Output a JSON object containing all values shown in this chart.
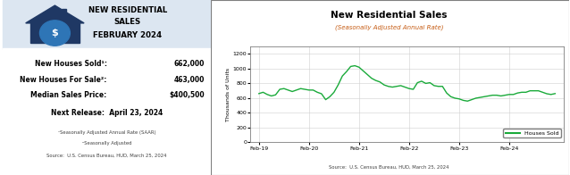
{
  "left_panel_bg": "#dce6f1",
  "right_panel_bg": "#ffffff",
  "title_line1": "NEW RESIDENTIAL",
  "title_line2": "SALES",
  "title_line3": "FEBRUARY 2024",
  "stats": [
    {
      "label": "New Houses Sold¹:",
      "value": "662,000"
    },
    {
      "label": "New Houses For Sale²:",
      "value": "463,000"
    },
    {
      "label": "Median Sales Price:",
      "value": "$400,500"
    }
  ],
  "next_release": "Next Release:  April 23, 2024",
  "footnote1": "¹Seasonally Adjusted Annual Rate (SAAR)",
  "footnote2": "²Seasonally Adjusted",
  "source_left": "Source:  U.S. Census Bureau, HUD, March 25, 2024",
  "chart_title": "New Residential Sales",
  "chart_subtitle": "(Seasonally Adjusted Annual Rate)",
  "chart_ylabel": "Thousands of Units",
  "chart_source": "Source:  U.S. Census Bureau, HUD, March 25, 2024",
  "chart_legend": "Houses Sold",
  "line_color": "#1aaa3a",
  "ylim": [
    0,
    1300
  ],
  "yticks": [
    0,
    200,
    400,
    600,
    800,
    1000,
    1200
  ],
  "xtick_labels": [
    "Feb-19",
    "Feb-20",
    "Feb-21",
    "Feb-22",
    "Feb-23",
    "Feb-24"
  ],
  "houses_sold": [
    662,
    680,
    650,
    630,
    645,
    720,
    730,
    710,
    690,
    710,
    730,
    720,
    710,
    710,
    680,
    660,
    580,
    620,
    680,
    780,
    900,
    960,
    1030,
    1040,
    1020,
    970,
    920,
    870,
    840,
    820,
    780,
    760,
    750,
    760,
    770,
    750,
    730,
    720,
    810,
    830,
    800,
    810,
    770,
    760,
    760,
    670,
    620,
    600,
    590,
    570,
    560,
    580,
    600,
    610,
    620,
    630,
    640,
    640,
    630,
    640,
    650,
    650,
    670,
    680,
    680,
    700,
    700,
    700,
    680,
    660,
    650,
    662
  ]
}
